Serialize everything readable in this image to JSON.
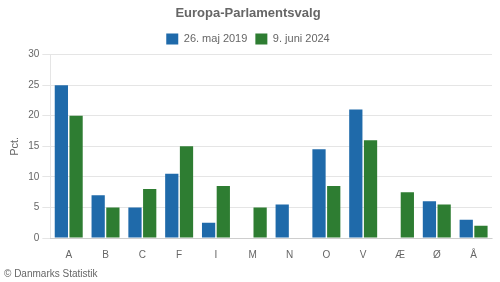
{
  "chart_data": {
    "type": "bar",
    "title": "Europa-Parlamentsvalg",
    "categories": [
      "A",
      "B",
      "C",
      "F",
      "I",
      "M",
      "N",
      "O",
      "V",
      "Æ",
      "Ø",
      "Å"
    ],
    "series": [
      {
        "name": "26. maj 2019",
        "color": "#1f6aaa",
        "values": [
          25.0,
          7.0,
          5.0,
          10.5,
          2.5,
          0.0,
          5.5,
          14.5,
          21.0,
          0.0,
          6.0,
          3.0
        ]
      },
      {
        "name": "9. juni 2024",
        "color": "#2e7d32",
        "values": [
          20.0,
          5.0,
          8.0,
          15.0,
          8.5,
          5.0,
          0.0,
          8.5,
          16.0,
          7.5,
          5.5,
          2.0
        ]
      }
    ],
    "ylabel": "Pct.",
    "ylim": [
      0,
      30
    ],
    "yticks": [
      0,
      5,
      10,
      15,
      20,
      25,
      30
    ],
    "grid": true,
    "legend": "top",
    "footnote": "© Danmarks Statistik"
  }
}
